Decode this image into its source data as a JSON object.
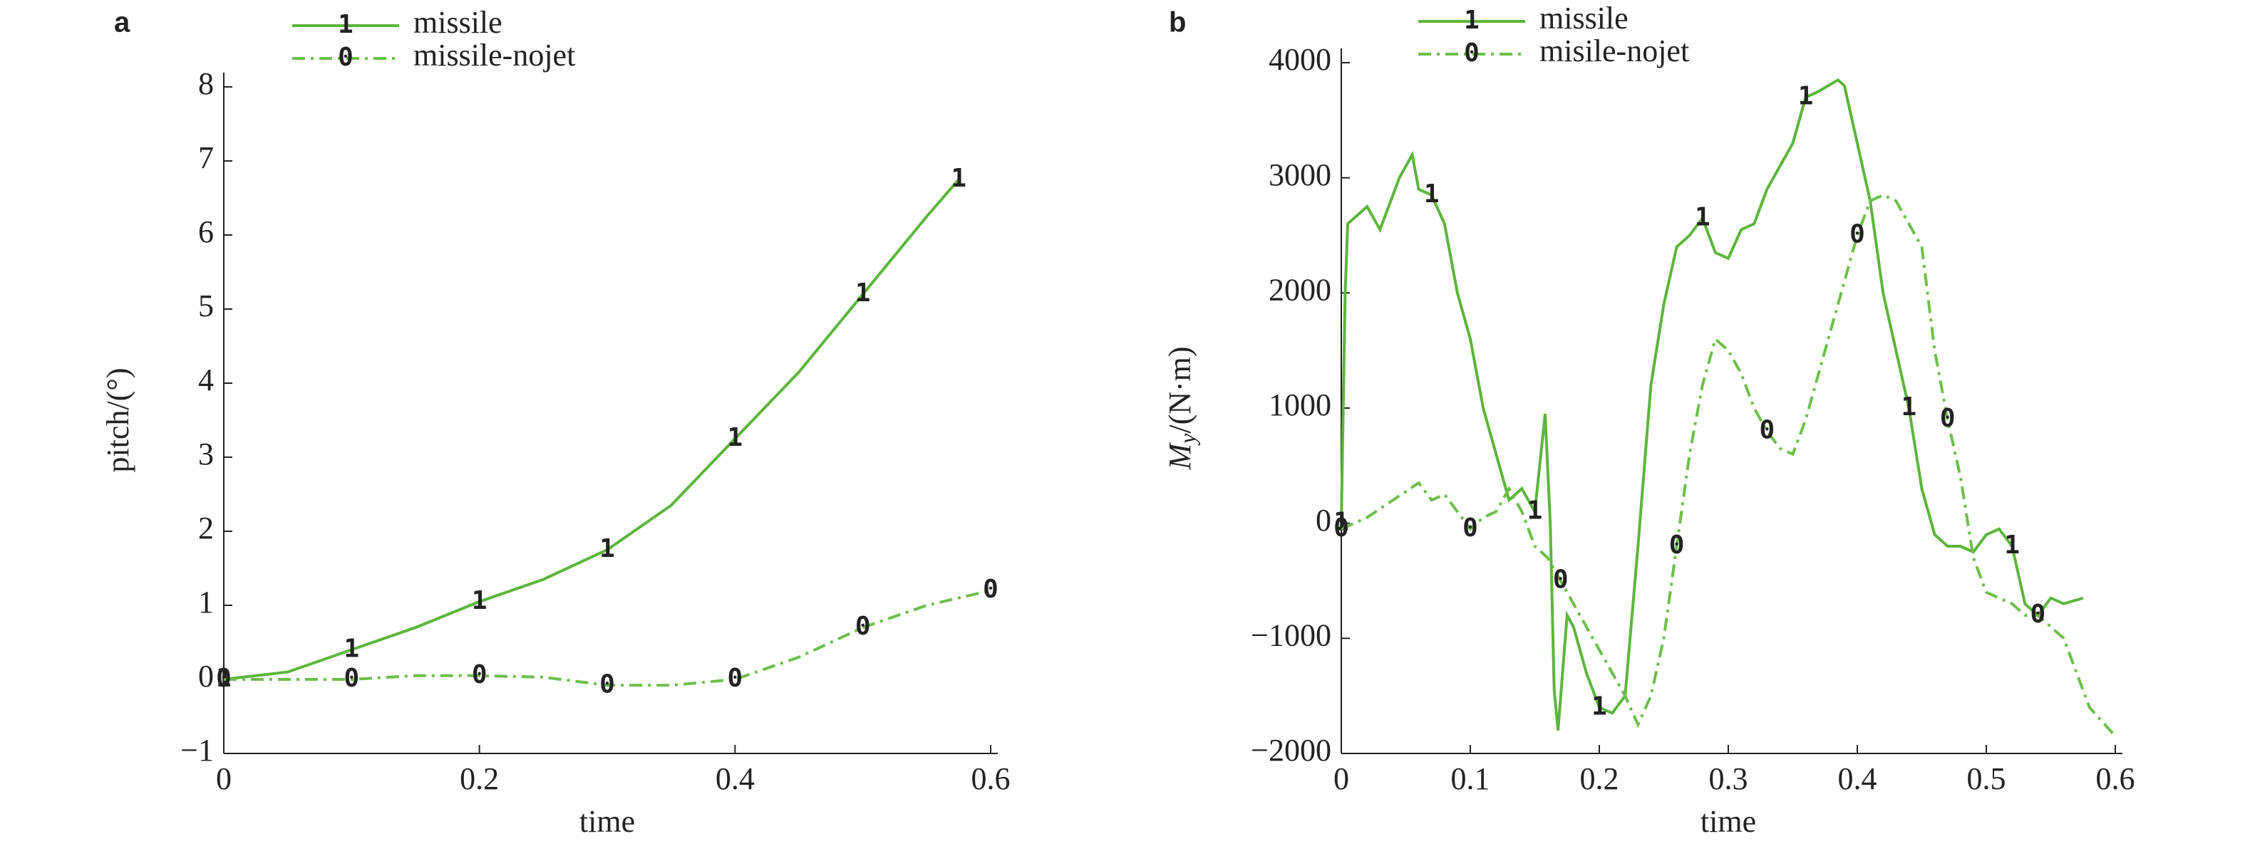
{
  "chart_data": [
    {
      "type": "line",
      "label": "a",
      "xlabel": "time",
      "ylabel": [
        "pitch/(°)"
      ],
      "xlim": [
        0,
        0.6
      ],
      "ylim": [
        -1,
        8
      ],
      "xticks": [
        0,
        0.2,
        0.4,
        0.6
      ],
      "yticks": [
        {
          "value": -1,
          "label": "−1"
        },
        0,
        1,
        2,
        3,
        4,
        5,
        6,
        7,
        8
      ],
      "series": [
        {
          "name": "missile",
          "color": "#5cb53c",
          "marker": "1",
          "dashed": false,
          "x": [
            0,
            0.05,
            0.1,
            0.15,
            0.2,
            0.25,
            0.3,
            0.35,
            0.4,
            0.45,
            0.5,
            0.55,
            0.575
          ],
          "values": [
            0,
            0.1,
            0.4,
            0.7,
            1.05,
            1.35,
            1.75,
            2.35,
            3.25,
            4.15,
            5.2,
            6.25,
            6.75
          ]
        },
        {
          "name": "missile-nojet",
          "color": "#6cbf4a",
          "marker": "0",
          "dashed": true,
          "x": [
            0,
            0.05,
            0.1,
            0.15,
            0.2,
            0.25,
            0.3,
            0.35,
            0.4,
            0.45,
            0.5,
            0.55,
            0.6
          ],
          "values": [
            0,
            0,
            0,
            0.05,
            0.05,
            0.03,
            -0.08,
            -0.08,
            0,
            0.3,
            0.7,
            1.0,
            1.2
          ]
        }
      ]
    },
    {
      "type": "line",
      "label": "b",
      "xlabel": "time",
      "ylabel": [
        "M",
        "y",
        "/(N·m)"
      ],
      "xlim": [
        0,
        0.6
      ],
      "ylim": [
        -2000,
        4000
      ],
      "xticks": [
        0,
        0.1,
        0.2,
        0.3,
        0.4,
        0.5,
        0.6
      ],
      "yticks": [
        {
          "value": -2000,
          "label": "−2000"
        },
        {
          "value": -1000,
          "label": "−1000"
        },
        0,
        1000,
        2000,
        3000,
        4000
      ],
      "series": [
        {
          "name": "missile",
          "color": "#5cb53c",
          "marker": "1",
          "dashed": false,
          "x": [
            0,
            0.003,
            0.005,
            0.02,
            0.03,
            0.045,
            0.055,
            0.06,
            0.07,
            0.08,
            0.09,
            0.1,
            0.11,
            0.12,
            0.13,
            0.14,
            0.15,
            0.158,
            0.162,
            0.165,
            0.168,
            0.175,
            0.18,
            0.19,
            0.2,
            0.21,
            0.22,
            0.23,
            0.24,
            0.25,
            0.26,
            0.27,
            0.28,
            0.29,
            0.3,
            0.31,
            0.32,
            0.33,
            0.34,
            0.35,
            0.36,
            0.37,
            0.385,
            0.39,
            0.4,
            0.41,
            0.42,
            0.43,
            0.44,
            0.45,
            0.46,
            0.47,
            0.48,
            0.49,
            0.5,
            0.51,
            0.52,
            0.53,
            0.54,
            0.55,
            0.56,
            0.575
          ],
          "values": [
            0,
            2000,
            2600,
            2750,
            2550,
            3000,
            3200,
            2900,
            2850,
            2600,
            2000,
            1600,
            1000,
            600,
            200,
            300,
            100,
            950,
            0,
            -1450,
            -1800,
            -800,
            -900,
            -1300,
            -1600,
            -1650,
            -1500,
            -200,
            1200,
            1900,
            2400,
            2500,
            2650,
            2350,
            2300,
            2550,
            2600,
            2900,
            3100,
            3300,
            3700,
            3750,
            3850,
            3800,
            3300,
            2800,
            2000,
            1500,
            1000,
            300,
            -100,
            -200,
            -200,
            -250,
            -100,
            -50,
            -200,
            -700,
            -800,
            -650,
            -700,
            -650
          ]
        },
        {
          "name": "misile-nojet",
          "color": "#6cbf4a",
          "marker": "0",
          "dashed": true,
          "x": [
            0,
            0.02,
            0.04,
            0.06,
            0.07,
            0.08,
            0.09,
            0.1,
            0.11,
            0.12,
            0.13,
            0.14,
            0.15,
            0.16,
            0.17,
            0.18,
            0.2,
            0.22,
            0.23,
            0.24,
            0.25,
            0.26,
            0.27,
            0.28,
            0.29,
            0.3,
            0.31,
            0.32,
            0.33,
            0.34,
            0.35,
            0.36,
            0.37,
            0.38,
            0.39,
            0.4,
            0.41,
            0.42,
            0.43,
            0.44,
            0.45,
            0.46,
            0.47,
            0.48,
            0.49,
            0.5,
            0.51,
            0.52,
            0.53,
            0.54,
            0.55,
            0.56,
            0.57,
            0.58,
            0.6
          ],
          "values": [
            -50,
            50,
            200,
            350,
            200,
            250,
            100,
            -50,
            50,
            100,
            300,
            100,
            -200,
            -300,
            -500,
            -700,
            -1100,
            -1500,
            -1750,
            -1500,
            -1000,
            -200,
            600,
            1200,
            1600,
            1500,
            1300,
            1000,
            800,
            650,
            600,
            900,
            1300,
            1700,
            2100,
            2500,
            2800,
            2850,
            2800,
            2600,
            2400,
            1500,
            900,
            400,
            -300,
            -600,
            -650,
            -700,
            -800,
            -800,
            -900,
            -1000,
            -1300,
            -1600,
            -1850
          ]
        }
      ]
    }
  ]
}
